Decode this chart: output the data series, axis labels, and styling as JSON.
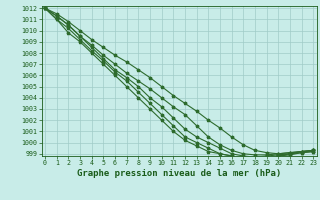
{
  "xlabel": "Graphe pression niveau de la mer (hPa)",
  "x": [
    0,
    1,
    2,
    3,
    4,
    5,
    6,
    7,
    8,
    9,
    10,
    11,
    12,
    13,
    14,
    15,
    16,
    17,
    18,
    19,
    20,
    21,
    22,
    23
  ],
  "series": [
    [
      1012,
      1011.5,
      1010.8,
      1010.0,
      1009.2,
      1008.5,
      1007.8,
      1007.2,
      1006.5,
      1005.8,
      1005.0,
      1004.2,
      1003.5,
      1002.8,
      1002.0,
      1001.3,
      1000.5,
      999.8,
      999.3,
      999.1,
      999.0,
      999.1,
      999.2,
      999.3
    ],
    [
      1012,
      1011.3,
      1010.5,
      1009.5,
      1008.7,
      1007.8,
      1007.0,
      1006.2,
      1005.5,
      1004.8,
      1004.0,
      1003.2,
      1002.5,
      1001.5,
      1000.5,
      999.8,
      999.3,
      999.0,
      998.9,
      998.9,
      999.0,
      999.1,
      999.2,
      999.3
    ],
    [
      1012,
      1011.3,
      1010.5,
      1009.5,
      1008.5,
      1007.5,
      1006.5,
      1005.8,
      1005.0,
      1004.0,
      1003.2,
      1002.2,
      1001.2,
      1000.5,
      1000.0,
      999.5,
      999.0,
      998.8,
      998.7,
      998.8,
      998.9,
      999.0,
      999.1,
      999.2
    ],
    [
      1012,
      1011.0,
      1010.2,
      1009.2,
      1008.2,
      1007.3,
      1006.3,
      1005.5,
      1004.5,
      1003.5,
      1002.5,
      1001.5,
      1000.5,
      1000.0,
      999.5,
      999.0,
      998.8,
      998.6,
      998.5,
      998.6,
      998.8,
      998.9,
      999.1,
      999.2
    ],
    [
      1012,
      1011.0,
      1009.8,
      1009.0,
      1008.0,
      1007.0,
      1006.0,
      1005.0,
      1004.0,
      1003.0,
      1002.0,
      1001.0,
      1000.2,
      999.7,
      999.2,
      999.0,
      998.8,
      998.6,
      998.5,
      998.6,
      998.8,
      999.0,
      999.2,
      999.3
    ]
  ],
  "line_color": "#2d6b2d",
  "bg_color": "#c8ece8",
  "grid_major_color": "#a0ccc8",
  "grid_minor_color": "#b8e0dc",
  "text_color": "#1a5c1a",
  "ylim_min": 998.8,
  "ylim_max": 1012.2,
  "ytick_min": 999,
  "ytick_max": 1012,
  "xlim_min": -0.3,
  "xlim_max": 23.3,
  "marker": "*",
  "marker_size": 2.5,
  "linewidth": 0.8,
  "xlabel_fontsize": 6.5,
  "tick_fontsize": 4.8
}
